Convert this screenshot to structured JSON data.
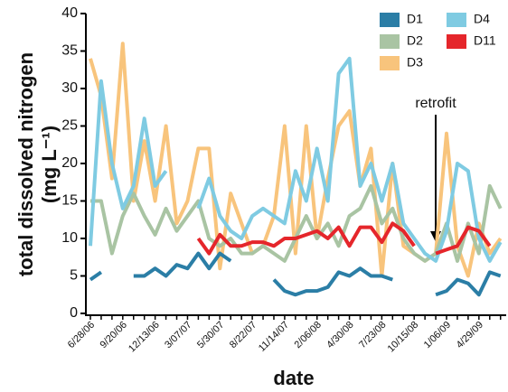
{
  "chart_data": {
    "type": "line",
    "ylabel": "total dissolved nitrogen",
    "ylabel_unit": "(mg L⁻¹)",
    "xlabel": "date",
    "annotation": "retrofit",
    "categories": [
      "6/28/06",
      null,
      null,
      "9/20/06",
      null,
      null,
      "12/13/06",
      null,
      null,
      "3/07/07",
      null,
      null,
      "5/30/07",
      null,
      null,
      "8/22/07",
      null,
      null,
      "11/14/07",
      null,
      null,
      "2/06/08",
      null,
      null,
      "4/30/08",
      null,
      null,
      "7/23/08",
      null,
      null,
      "10/15/08",
      null,
      null,
      "1/06/09",
      null,
      null,
      "4/29/09",
      null,
      null
    ],
    "series": [
      {
        "name": "D1",
        "color": "#2b7ea6",
        "values": [
          4.5,
          5.5,
          null,
          null,
          5,
          5,
          6,
          5,
          6.5,
          6,
          8,
          6,
          8,
          7,
          null,
          null,
          null,
          4.5,
          3,
          2.5,
          3,
          3,
          3.5,
          5.5,
          5,
          6,
          5,
          5,
          4.5,
          null,
          null,
          null,
          2.5,
          3,
          4.5,
          4,
          2.5,
          5.5,
          5
        ]
      },
      {
        "name": "D2",
        "color": "#a9c4a3",
        "values": [
          15,
          15,
          8,
          13,
          16,
          13,
          10.5,
          14,
          11,
          13,
          15,
          10,
          9,
          10,
          8,
          8,
          9,
          8,
          7,
          10,
          13,
          10,
          12,
          9,
          13,
          14,
          17,
          12,
          14,
          10,
          8,
          7,
          8,
          12,
          7,
          12,
          8,
          17,
          14
        ]
      },
      {
        "name": "D3",
        "color": "#f8c47c",
        "values": [
          34,
          29,
          18,
          36,
          15,
          23,
          15,
          25,
          12,
          15,
          22,
          22,
          6,
          16,
          12,
          8,
          9,
          13,
          25,
          8,
          25,
          10,
          18,
          25,
          27,
          17,
          22,
          5,
          20,
          9,
          8,
          7,
          8,
          24,
          9,
          5,
          12,
          8,
          10
        ]
      },
      {
        "name": "D4",
        "color": "#7fcbe2",
        "values": [
          9,
          31,
          20,
          14,
          17,
          26,
          17,
          19,
          null,
          null,
          14,
          18,
          13,
          11,
          10,
          13,
          14,
          13,
          12,
          19,
          15,
          22,
          15,
          32,
          34,
          17,
          20,
          15,
          20,
          12,
          10,
          8,
          7,
          11,
          20,
          19,
          10,
          7,
          9.5
        ]
      },
      {
        "name": "D11",
        "color": "#e5262b",
        "values": [
          null,
          null,
          null,
          null,
          null,
          null,
          null,
          null,
          null,
          null,
          10,
          8,
          10.5,
          9,
          9,
          9.5,
          9.5,
          9,
          10,
          10,
          10.5,
          11,
          10,
          11.5,
          9,
          11.5,
          11.5,
          9.5,
          12,
          11,
          9,
          null,
          8,
          8.5,
          9,
          11.5,
          11,
          9,
          null
        ]
      }
    ],
    "ylim": [
      0,
      40
    ],
    "yticks": [
      0,
      5,
      10,
      15,
      20,
      25,
      30,
      35,
      40
    ]
  }
}
